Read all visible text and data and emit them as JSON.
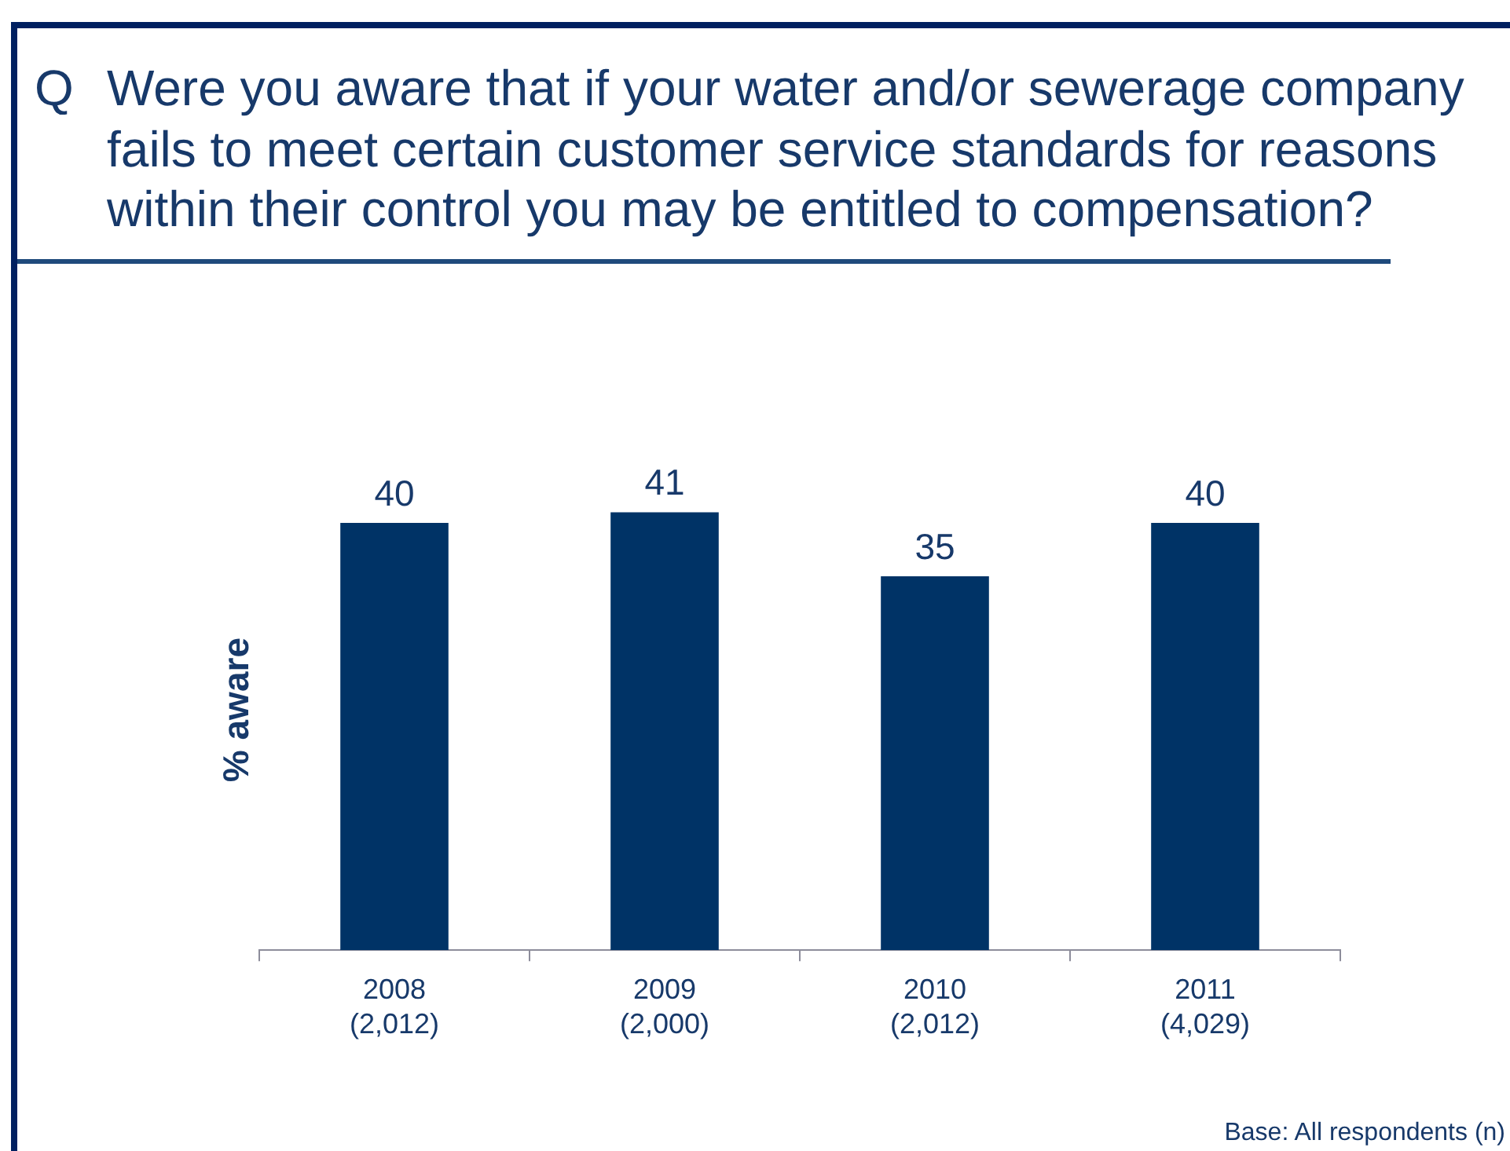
{
  "chart_data": {
    "type": "bar",
    "title": "Q Were you aware that if your water and/or sewerage company fails to meet certain customer service standards for reasons within their control you may be entitled to compensation?",
    "ylabel": "% aware",
    "categories": [
      "2008\n(2,012)",
      "2009\n(2,000)",
      "2010\n(2,012)",
      "2011\n(4,029)"
    ],
    "values": [
      40,
      41,
      35,
      40
    ],
    "color": "#003366",
    "data_labels": true,
    "annotations": [
      "Base: All respondents (n)"
    ]
  }
}
